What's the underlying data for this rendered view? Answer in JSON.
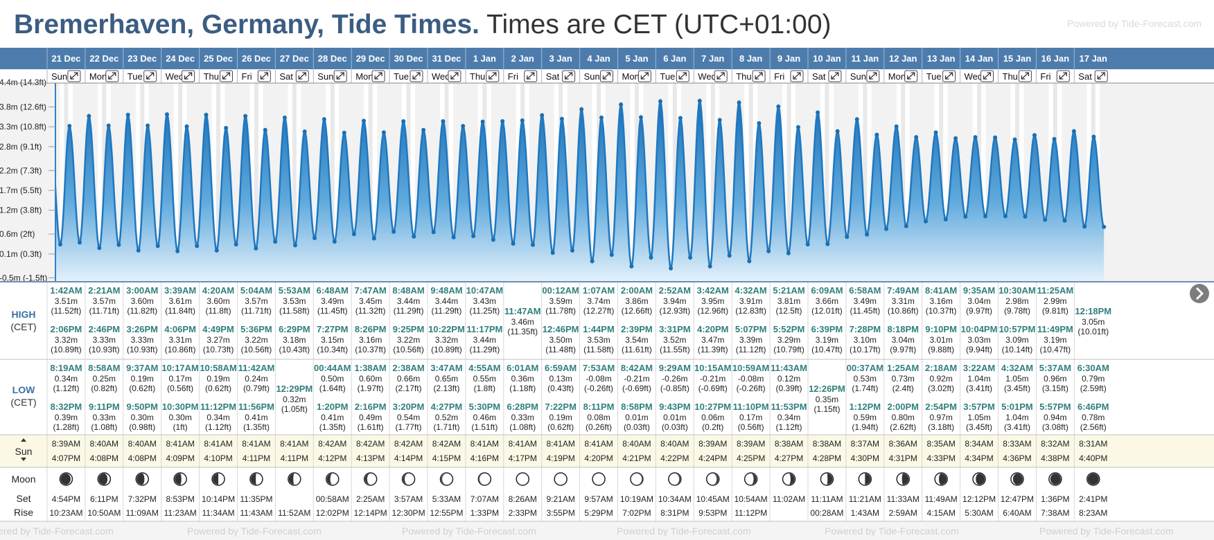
{
  "header": {
    "title": "Bremerhaven, Germany, Tide Times.",
    "subtitle": "Times are CET (UTC+01:00)",
    "powered": "Powered by Tide-Forecast.com"
  },
  "footer_watermark": "Powered by Tide-Forecast.com",
  "row_labels": {
    "high": "HIGH",
    "low": "LOW",
    "tz": "(CET)",
    "sun": "Sun",
    "moon": "Moon",
    "set": "Set",
    "rise": "Rise"
  },
  "colors": {
    "header_blue": "#4d7cac",
    "tide_blue": "#2f86c9",
    "time_teal": "#2f7f7c"
  },
  "chart_data": {
    "type": "area",
    "y_ticks": [
      "3.8m (12.6ft)",
      "3.3m (10.8ft)",
      "2.8m (9.1ft)",
      "2.2m (7.3ft)",
      "1.7m (5.5ft)",
      "1.2m (3.8ft)",
      "0.6m (2ft)",
      "0.1m (0.3ft)",
      "-0.5m (-1.5ft)"
    ],
    "y_tick_values": [
      3.8,
      3.3,
      2.8,
      2.2,
      1.7,
      1.2,
      0.6,
      0.1,
      -0.5
    ],
    "ylim": [
      -0.6,
      4.4
    ],
    "grid": true
  },
  "days": [
    {
      "date": "21 Dec",
      "dow": "Sun",
      "highs": [
        [
          "1:42AM",
          "3.51m",
          "(11.52ft)"
        ],
        [
          "2:06PM",
          "3.32m",
          "(10.89ft)"
        ]
      ],
      "lows": [
        [
          "8:19AM",
          "0.34m",
          "(1.12ft)"
        ],
        [
          "8:32PM",
          "0.39m",
          "(1.28ft)"
        ]
      ],
      "sunrise": "8:39AM",
      "sunset": "4:07PM",
      "moonset": "4:54PM",
      "moonrise": "10:23AM",
      "moon": "waxing",
      "moonf": 0.1
    },
    {
      "date": "22 Dec",
      "dow": "Mon",
      "highs": [
        [
          "2:21AM",
          "3.57m",
          "(11.71ft)"
        ],
        [
          "2:46PM",
          "3.33m",
          "(10.93ft)"
        ]
      ],
      "lows": [
        [
          "8:58AM",
          "0.25m",
          "(0.82ft)"
        ],
        [
          "9:11PM",
          "0.33m",
          "(1.08ft)"
        ]
      ],
      "sunrise": "8:40AM",
      "sunset": "4:08PM",
      "moonset": "6:11PM",
      "moonrise": "10:50AM",
      "moon": "waxing",
      "moonf": 0.2
    },
    {
      "date": "23 Dec",
      "dow": "Tue",
      "highs": [
        [
          "3:00AM",
          "3.60m",
          "(11.82ft)"
        ],
        [
          "3:26PM",
          "3.33m",
          "(10.93ft)"
        ]
      ],
      "lows": [
        [
          "9:37AM",
          "0.19m",
          "(0.62ft)"
        ],
        [
          "9:50PM",
          "0.30m",
          "(0.98ft)"
        ]
      ],
      "sunrise": "8:40AM",
      "sunset": "4:08PM",
      "moonset": "7:32PM",
      "moonrise": "11:09AM",
      "moon": "waxing",
      "moonf": 0.3
    },
    {
      "date": "24 Dec",
      "dow": "Wed",
      "highs": [
        [
          "3:39AM",
          "3.61m",
          "(11.84ft)"
        ],
        [
          "4:06PM",
          "3.31m",
          "(10.86ft)"
        ]
      ],
      "lows": [
        [
          "10:17AM",
          "0.17m",
          "(0.56ft)"
        ],
        [
          "10:30PM",
          "0.30m",
          "(1ft)"
        ]
      ],
      "sunrise": "8:41AM",
      "sunset": "4:09PM",
      "moonset": "8:53PM",
      "moonrise": "11:23AM",
      "moon": "waxing",
      "moonf": 0.4
    },
    {
      "date": "25 Dec",
      "dow": "Thu",
      "highs": [
        [
          "4:20AM",
          "3.60m",
          "(11.8ft)"
        ],
        [
          "4:49PM",
          "3.27m",
          "(10.73ft)"
        ]
      ],
      "lows": [
        [
          "10:58AM",
          "0.19m",
          "(0.62ft)"
        ],
        [
          "11:12PM",
          "0.34m",
          "(1.12ft)"
        ]
      ],
      "sunrise": "8:41AM",
      "sunset": "4:10PM",
      "moonset": "10:14PM",
      "moonrise": "11:34AM",
      "moon": "waxing",
      "moonf": 0.5
    },
    {
      "date": "26 Dec",
      "dow": "Fri",
      "highs": [
        [
          "5:04AM",
          "3.57m",
          "(11.71ft)"
        ],
        [
          "5:36PM",
          "3.22m",
          "(10.56ft)"
        ]
      ],
      "lows": [
        [
          "11:42AM",
          "0.24m",
          "(0.79ft)"
        ],
        [
          "11:56PM",
          "0.41m",
          "(1.35ft)"
        ]
      ],
      "sunrise": "8:41AM",
      "sunset": "4:11PM",
      "moonset": "11:35PM",
      "moonrise": "11:43AM",
      "moon": "waxing",
      "moonf": 0.55
    },
    {
      "date": "27 Dec",
      "dow": "Sat",
      "highs": [
        [
          "5:53AM",
          "3.53m",
          "(11.58ft)"
        ],
        [
          "6:29PM",
          "3.18m",
          "(10.43ft)"
        ]
      ],
      "lows": [
        [
          "12:29PM",
          "0.32m",
          "(1.05ft)"
        ]
      ],
      "sunrise": "8:41AM",
      "sunset": "4:11PM",
      "moonset": "",
      "moonrise": "11:52AM",
      "moon": "waxing",
      "moonf": 0.6
    },
    {
      "date": "28 Dec",
      "dow": "Sun",
      "highs": [
        [
          "6:48AM",
          "3.49m",
          "(11.45ft)"
        ],
        [
          "7:27PM",
          "3.15m",
          "(10.34ft)"
        ]
      ],
      "lows": [
        [
          "00:44AM",
          "0.50m",
          "(1.64ft)"
        ],
        [
          "1:20PM",
          "0.41m",
          "(1.35ft)"
        ]
      ],
      "sunrise": "8:42AM",
      "sunset": "4:12PM",
      "moonset": "00:58AM",
      "moonrise": "12:02PM",
      "moon": "waxing",
      "moonf": 0.7
    },
    {
      "date": "29 Dec",
      "dow": "Mon",
      "highs": [
        [
          "7:47AM",
          "3.45m",
          "(11.32ft)"
        ],
        [
          "8:26PM",
          "3.16m",
          "(10.37ft)"
        ]
      ],
      "lows": [
        [
          "1:38AM",
          "0.60m",
          "(1.97ft)"
        ],
        [
          "2:16PM",
          "0.49m",
          "(1.61ft)"
        ]
      ],
      "sunrise": "8:42AM",
      "sunset": "4:13PM",
      "moonset": "2:25AM",
      "moonrise": "12:14PM",
      "moon": "waxing",
      "moonf": 0.8
    },
    {
      "date": "30 Dec",
      "dow": "Tue",
      "highs": [
        [
          "8:48AM",
          "3.44m",
          "(11.29ft)"
        ],
        [
          "9:25PM",
          "3.22m",
          "(10.56ft)"
        ]
      ],
      "lows": [
        [
          "2:38AM",
          "0.66m",
          "(2.17ft)"
        ],
        [
          "3:20PM",
          "0.54m",
          "(1.77ft)"
        ]
      ],
      "sunrise": "8:42AM",
      "sunset": "4:14PM",
      "moonset": "3:57AM",
      "moonrise": "12:30PM",
      "moon": "waxing",
      "moonf": 0.85
    },
    {
      "date": "31 Dec",
      "dow": "Wed",
      "highs": [
        [
          "9:48AM",
          "3.44m",
          "(11.29ft)"
        ],
        [
          "10:22PM",
          "3.32m",
          "(10.89ft)"
        ]
      ],
      "lows": [
        [
          "3:47AM",
          "0.65m",
          "(2.13ft)"
        ],
        [
          "4:27PM",
          "0.52m",
          "(1.71ft)"
        ]
      ],
      "sunrise": "8:42AM",
      "sunset": "4:15PM",
      "moonset": "5:33AM",
      "moonrise": "12:55PM",
      "moon": "waxing",
      "moonf": 0.9
    },
    {
      "date": "1 Jan",
      "dow": "Thu",
      "highs": [
        [
          "10:47AM",
          "3.43m",
          "(11.25ft)"
        ],
        [
          "11:17PM",
          "3.44m",
          "(11.29ft)"
        ]
      ],
      "lows": [
        [
          "4:55AM",
          "0.55m",
          "(1.8ft)"
        ],
        [
          "5:30PM",
          "0.46m",
          "(1.51ft)"
        ]
      ],
      "sunrise": "8:41AM",
      "sunset": "4:16PM",
      "moonset": "7:07AM",
      "moonrise": "1:33PM",
      "moon": "waxing",
      "moonf": 0.95
    },
    {
      "date": "2 Jan",
      "dow": "Fri",
      "highs": [
        [
          "11:47AM",
          "3.46m",
          "(11.35ft)"
        ]
      ],
      "lows": [
        [
          "6:01AM",
          "0.36m",
          "(1.18ft)"
        ],
        [
          "6:28PM",
          "0.33m",
          "(1.08ft)"
        ]
      ],
      "sunrise": "8:41AM",
      "sunset": "4:17PM",
      "moonset": "8:26AM",
      "moonrise": "2:33PM",
      "moon": "full",
      "moonf": 1.0
    },
    {
      "date": "3 Jan",
      "dow": "Sat",
      "highs": [
        [
          "00:12AM",
          "3.59m",
          "(11.78ft)"
        ],
        [
          "12:46PM",
          "3.50m",
          "(11.48ft)"
        ]
      ],
      "lows": [
        [
          "6:59AM",
          "0.13m",
          "(0.43ft)"
        ],
        [
          "7:22PM",
          "0.19m",
          "(0.62ft)"
        ]
      ],
      "sunrise": "8:41AM",
      "sunset": "4:19PM",
      "moonset": "9:21AM",
      "moonrise": "3:55PM",
      "moon": "full",
      "moonf": 1.0
    },
    {
      "date": "4 Jan",
      "dow": "Sun",
      "highs": [
        [
          "1:07AM",
          "3.74m",
          "(12.27ft)"
        ],
        [
          "1:44PM",
          "3.53m",
          "(11.58ft)"
        ]
      ],
      "lows": [
        [
          "7:53AM",
          "-0.08m",
          "(-0.26ft)"
        ],
        [
          "8:11PM",
          "0.08m",
          "(0.26ft)"
        ]
      ],
      "sunrise": "8:41AM",
      "sunset": "4:20PM",
      "moonset": "9:57AM",
      "moonrise": "5:29PM",
      "moon": "full",
      "moonf": 1.0
    },
    {
      "date": "5 Jan",
      "dow": "Mon",
      "highs": [
        [
          "2:00AM",
          "3.86m",
          "(12.66ft)"
        ],
        [
          "2:39PM",
          "3.54m",
          "(11.61ft)"
        ]
      ],
      "lows": [
        [
          "8:42AM",
          "-0.21m",
          "(-0.69ft)"
        ],
        [
          "8:58PM",
          "0.01m",
          "(0.03ft)"
        ]
      ],
      "sunrise": "8:40AM",
      "sunset": "4:21PM",
      "moonset": "10:19AM",
      "moonrise": "7:02PM",
      "moon": "waning",
      "moonf": 0.95
    },
    {
      "date": "6 Jan",
      "dow": "Tue",
      "highs": [
        [
          "2:52AM",
          "3.94m",
          "(12.93ft)"
        ],
        [
          "3:31PM",
          "3.52m",
          "(11.55ft)"
        ]
      ],
      "lows": [
        [
          "9:29AM",
          "-0.26m",
          "(-0.85ft)"
        ],
        [
          "9:43PM",
          "0.01m",
          "(0.03ft)"
        ]
      ],
      "sunrise": "8:40AM",
      "sunset": "4:22PM",
      "moonset": "10:34AM",
      "moonrise": "8:31PM",
      "moon": "waning",
      "moonf": 0.9
    },
    {
      "date": "7 Jan",
      "dow": "Wed",
      "highs": [
        [
          "3:42AM",
          "3.95m",
          "(12.96ft)"
        ],
        [
          "4:20PM",
          "3.47m",
          "(11.39ft)"
        ]
      ],
      "lows": [
        [
          "10:15AM",
          "-0.21m",
          "(-0.69ft)"
        ],
        [
          "10:27PM",
          "0.06m",
          "(0.2ft)"
        ]
      ],
      "sunrise": "8:39AM",
      "sunset": "4:24PM",
      "moonset": "10:45AM",
      "moonrise": "9:53PM",
      "moon": "waning",
      "moonf": 0.85
    },
    {
      "date": "8 Jan",
      "dow": "Thu",
      "highs": [
        [
          "4:32AM",
          "3.91m",
          "(12.83ft)"
        ],
        [
          "5:07PM",
          "3.39m",
          "(11.12ft)"
        ]
      ],
      "lows": [
        [
          "10:59AM",
          "-0.08m",
          "(-0.26ft)"
        ],
        [
          "11:10PM",
          "0.17m",
          "(0.56ft)"
        ]
      ],
      "sunrise": "8:39AM",
      "sunset": "4:25PM",
      "moonset": "10:54AM",
      "moonrise": "11:12PM",
      "moon": "waning",
      "moonf": 0.75
    },
    {
      "date": "9 Jan",
      "dow": "Fri",
      "highs": [
        [
          "5:21AM",
          "3.81m",
          "(12.5ft)"
        ],
        [
          "5:52PM",
          "3.29m",
          "(10.79ft)"
        ]
      ],
      "lows": [
        [
          "11:43AM",
          "0.12m",
          "(0.39ft)"
        ],
        [
          "11:53PM",
          "0.34m",
          "(1.12ft)"
        ]
      ],
      "sunrise": "8:38AM",
      "sunset": "4:27PM",
      "moonset": "11:02AM",
      "moonrise": "",
      "moon": "waning",
      "moonf": 0.65
    },
    {
      "date": "10 Jan",
      "dow": "Sat",
      "highs": [
        [
          "6:09AM",
          "3.66m",
          "(12.01ft)"
        ],
        [
          "6:39PM",
          "3.19m",
          "(10.47ft)"
        ]
      ],
      "lows": [
        [
          "12:26PM",
          "0.35m",
          "(1.15ft)"
        ]
      ],
      "sunrise": "8:38AM",
      "sunset": "4:28PM",
      "moonset": "11:11AM",
      "moonrise": "00:28AM",
      "moon": "waning",
      "moonf": 0.55
    },
    {
      "date": "11 Jan",
      "dow": "Sun",
      "highs": [
        [
          "6:58AM",
          "3.49m",
          "(11.45ft)"
        ],
        [
          "7:28PM",
          "3.10m",
          "(10.17ft)"
        ]
      ],
      "lows": [
        [
          "00:37AM",
          "0.53m",
          "(1.74ft)"
        ],
        [
          "1:12PM",
          "0.59m",
          "(1.94ft)"
        ]
      ],
      "sunrise": "8:37AM",
      "sunset": "4:30PM",
      "moonset": "11:21AM",
      "moonrise": "1:43AM",
      "moon": "waning",
      "moonf": 0.5
    },
    {
      "date": "12 Jan",
      "dow": "Mon",
      "highs": [
        [
          "7:49AM",
          "3.31m",
          "(10.86ft)"
        ],
        [
          "8:18PM",
          "3.04m",
          "(9.97ft)"
        ]
      ],
      "lows": [
        [
          "1:25AM",
          "0.73m",
          "(2.4ft)"
        ],
        [
          "2:00PM",
          "0.80m",
          "(2.62ft)"
        ]
      ],
      "sunrise": "8:36AM",
      "sunset": "4:31PM",
      "moonset": "11:33AM",
      "moonrise": "2:59AM",
      "moon": "waning",
      "moonf": 0.4
    },
    {
      "date": "13 Jan",
      "dow": "Tue",
      "highs": [
        [
          "8:41AM",
          "3.16m",
          "(10.37ft)"
        ],
        [
          "9:10PM",
          "3.01m",
          "(9.88ft)"
        ]
      ],
      "lows": [
        [
          "2:18AM",
          "0.92m",
          "(3.02ft)"
        ],
        [
          "2:54PM",
          "0.97m",
          "(3.18ft)"
        ]
      ],
      "sunrise": "8:35AM",
      "sunset": "4:33PM",
      "moonset": "11:49AM",
      "moonrise": "4:15AM",
      "moon": "waning",
      "moonf": 0.3
    },
    {
      "date": "14 Jan",
      "dow": "Wed",
      "highs": [
        [
          "9:35AM",
          "3.04m",
          "(9.97ft)"
        ],
        [
          "10:04PM",
          "3.03m",
          "(9.94ft)"
        ]
      ],
      "lows": [
        [
          "3:22AM",
          "1.04m",
          "(3.41ft)"
        ],
        [
          "3:57PM",
          "1.05m",
          "(3.45ft)"
        ]
      ],
      "sunrise": "8:34AM",
      "sunset": "4:34PM",
      "moonset": "12:12PM",
      "moonrise": "5:30AM",
      "moon": "waning",
      "moonf": 0.2
    },
    {
      "date": "15 Jan",
      "dow": "Thu",
      "highs": [
        [
          "10:30AM",
          "2.98m",
          "(9.78ft)"
        ],
        [
          "10:57PM",
          "3.09m",
          "(10.14ft)"
        ]
      ],
      "lows": [
        [
          "4:32AM",
          "1.05m",
          "(3.45ft)"
        ],
        [
          "5:01PM",
          "1.04m",
          "(3.41ft)"
        ]
      ],
      "sunrise": "8:33AM",
      "sunset": "4:36PM",
      "moonset": "12:47PM",
      "moonrise": "6:40AM",
      "moon": "waning",
      "moonf": 0.12
    },
    {
      "date": "16 Jan",
      "dow": "Fri",
      "highs": [
        [
          "11:25AM",
          "2.99m",
          "(9.81ft)"
        ],
        [
          "11:49PM",
          "3.19m",
          "(10.47ft)"
        ]
      ],
      "lows": [
        [
          "5:37AM",
          "0.96m",
          "(3.15ft)"
        ],
        [
          "5:57PM",
          "0.94m",
          "(3.08ft)"
        ]
      ],
      "sunrise": "8:32AM",
      "sunset": "4:38PM",
      "moonset": "1:36PM",
      "moonrise": "7:38AM",
      "moon": "waning",
      "moonf": 0.06
    },
    {
      "date": "17 Jan",
      "dow": "Sat",
      "highs": [
        [
          "12:18PM",
          "3.05m",
          "(10.01ft)"
        ]
      ],
      "lows": [
        [
          "6:30AM",
          "0.79m",
          "(2.59ft)"
        ],
        [
          "6:46PM",
          "0.78m",
          "(2.56ft)"
        ]
      ],
      "sunrise": "8:31AM",
      "sunset": "4:40PM",
      "moonset": "2:41PM",
      "moonrise": "8:23AM",
      "moon": "new",
      "moonf": 0.0
    }
  ]
}
